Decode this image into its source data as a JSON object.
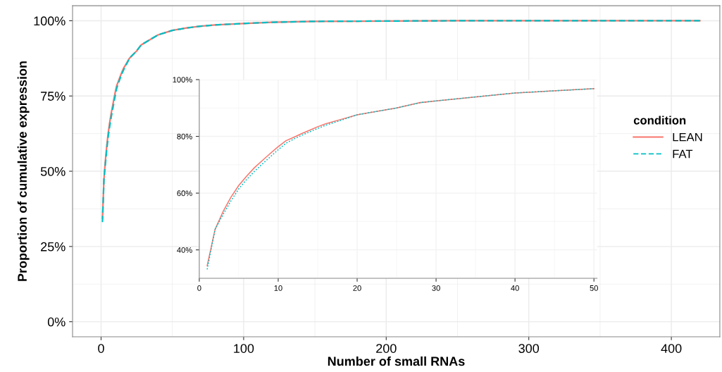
{
  "chart_data": [
    {
      "type": "line",
      "xlabel": "Number of small RNAs",
      "ylabel": "Proportion of cumulative expression",
      "x": [
        1,
        2,
        3,
        4,
        5,
        6,
        7,
        8,
        9,
        10,
        11,
        12,
        13,
        14,
        15,
        16,
        18,
        20,
        25,
        28,
        30,
        40,
        50,
        60,
        70,
        80,
        100,
        120,
        150,
        200,
        250,
        300,
        420
      ],
      "series": [
        {
          "name": "LEAN",
          "color": "#f8766d",
          "line_style": "solid",
          "values": [
            34.4,
            47.2,
            53.4,
            58.5,
            62.7,
            66,
            69,
            71.5,
            74,
            76.4,
            78.5,
            79.7,
            81,
            82.2,
            83.4,
            84.4,
            86,
            87.6,
            90,
            91.9,
            92.5,
            95.3,
            96.8,
            97.6,
            98.2,
            98.6,
            99.1,
            99.5,
            99.8,
            99.9,
            100,
            100,
            100
          ]
        },
        {
          "name": "FAT",
          "color": "#00bfc4",
          "line_style": "dashed",
          "values": [
            33.1,
            47.2,
            52.4,
            57.2,
            61.5,
            64.8,
            67.7,
            70.3,
            72.8,
            75.3,
            77.6,
            79.1,
            80.4,
            81.6,
            82.8,
            83.9,
            85.7,
            87.6,
            90,
            91.9,
            92.5,
            95.3,
            96.8,
            97.6,
            98.2,
            98.6,
            99.1,
            99.5,
            99.8,
            99.9,
            100,
            100,
            100
          ]
        }
      ],
      "xlim": [
        -20,
        434
      ],
      "ylim": [
        -5,
        105
      ],
      "xticks": [
        0,
        100,
        200,
        300,
        400
      ],
      "yticks": [
        {
          "value": 0,
          "label": "0%"
        },
        {
          "value": 25,
          "label": "25%"
        },
        {
          "value": 50,
          "label": "50%"
        },
        {
          "value": 75,
          "label": "75%"
        },
        {
          "value": 100,
          "label": "100%"
        }
      ],
      "grid": true,
      "legend": "right",
      "legend_title": "condition"
    },
    {
      "type": "line",
      "x": [
        1,
        2,
        3,
        4,
        5,
        6,
        7,
        8,
        9,
        10,
        11,
        12,
        13,
        14,
        15,
        16,
        18,
        20,
        25,
        28,
        30,
        40,
        50
      ],
      "series": [
        {
          "color": "#f8766d",
          "line_style": "solid",
          "values": [
            34.4,
            47.2,
            53.4,
            58.5,
            62.7,
            66,
            69,
            71.5,
            74,
            76.4,
            78.5,
            79.7,
            81,
            82.2,
            83.4,
            84.4,
            86,
            87.6,
            90,
            91.9,
            92.5,
            95.3,
            96.8
          ]
        },
        {
          "color": "#00bfc4",
          "line_style": "dotted",
          "values": [
            33.1,
            47.2,
            52.4,
            57.2,
            61.5,
            64.8,
            67.7,
            70.3,
            72.8,
            75.3,
            77.6,
            79.1,
            80.4,
            81.6,
            82.8,
            83.9,
            85.7,
            87.6,
            90,
            91.9,
            92.5,
            95.3,
            96.8
          ]
        }
      ],
      "xlim": [
        0,
        50.4
      ],
      "ylim": [
        30,
        100
      ],
      "xticks": [
        0,
        10,
        20,
        30,
        40,
        50
      ],
      "yticks": [
        {
          "value": 40,
          "label": "40%"
        },
        {
          "value": 60,
          "label": "60%"
        },
        {
          "value": 80,
          "label": "80%"
        },
        {
          "value": 100,
          "label": "100%"
        }
      ],
      "grid": true
    }
  ]
}
